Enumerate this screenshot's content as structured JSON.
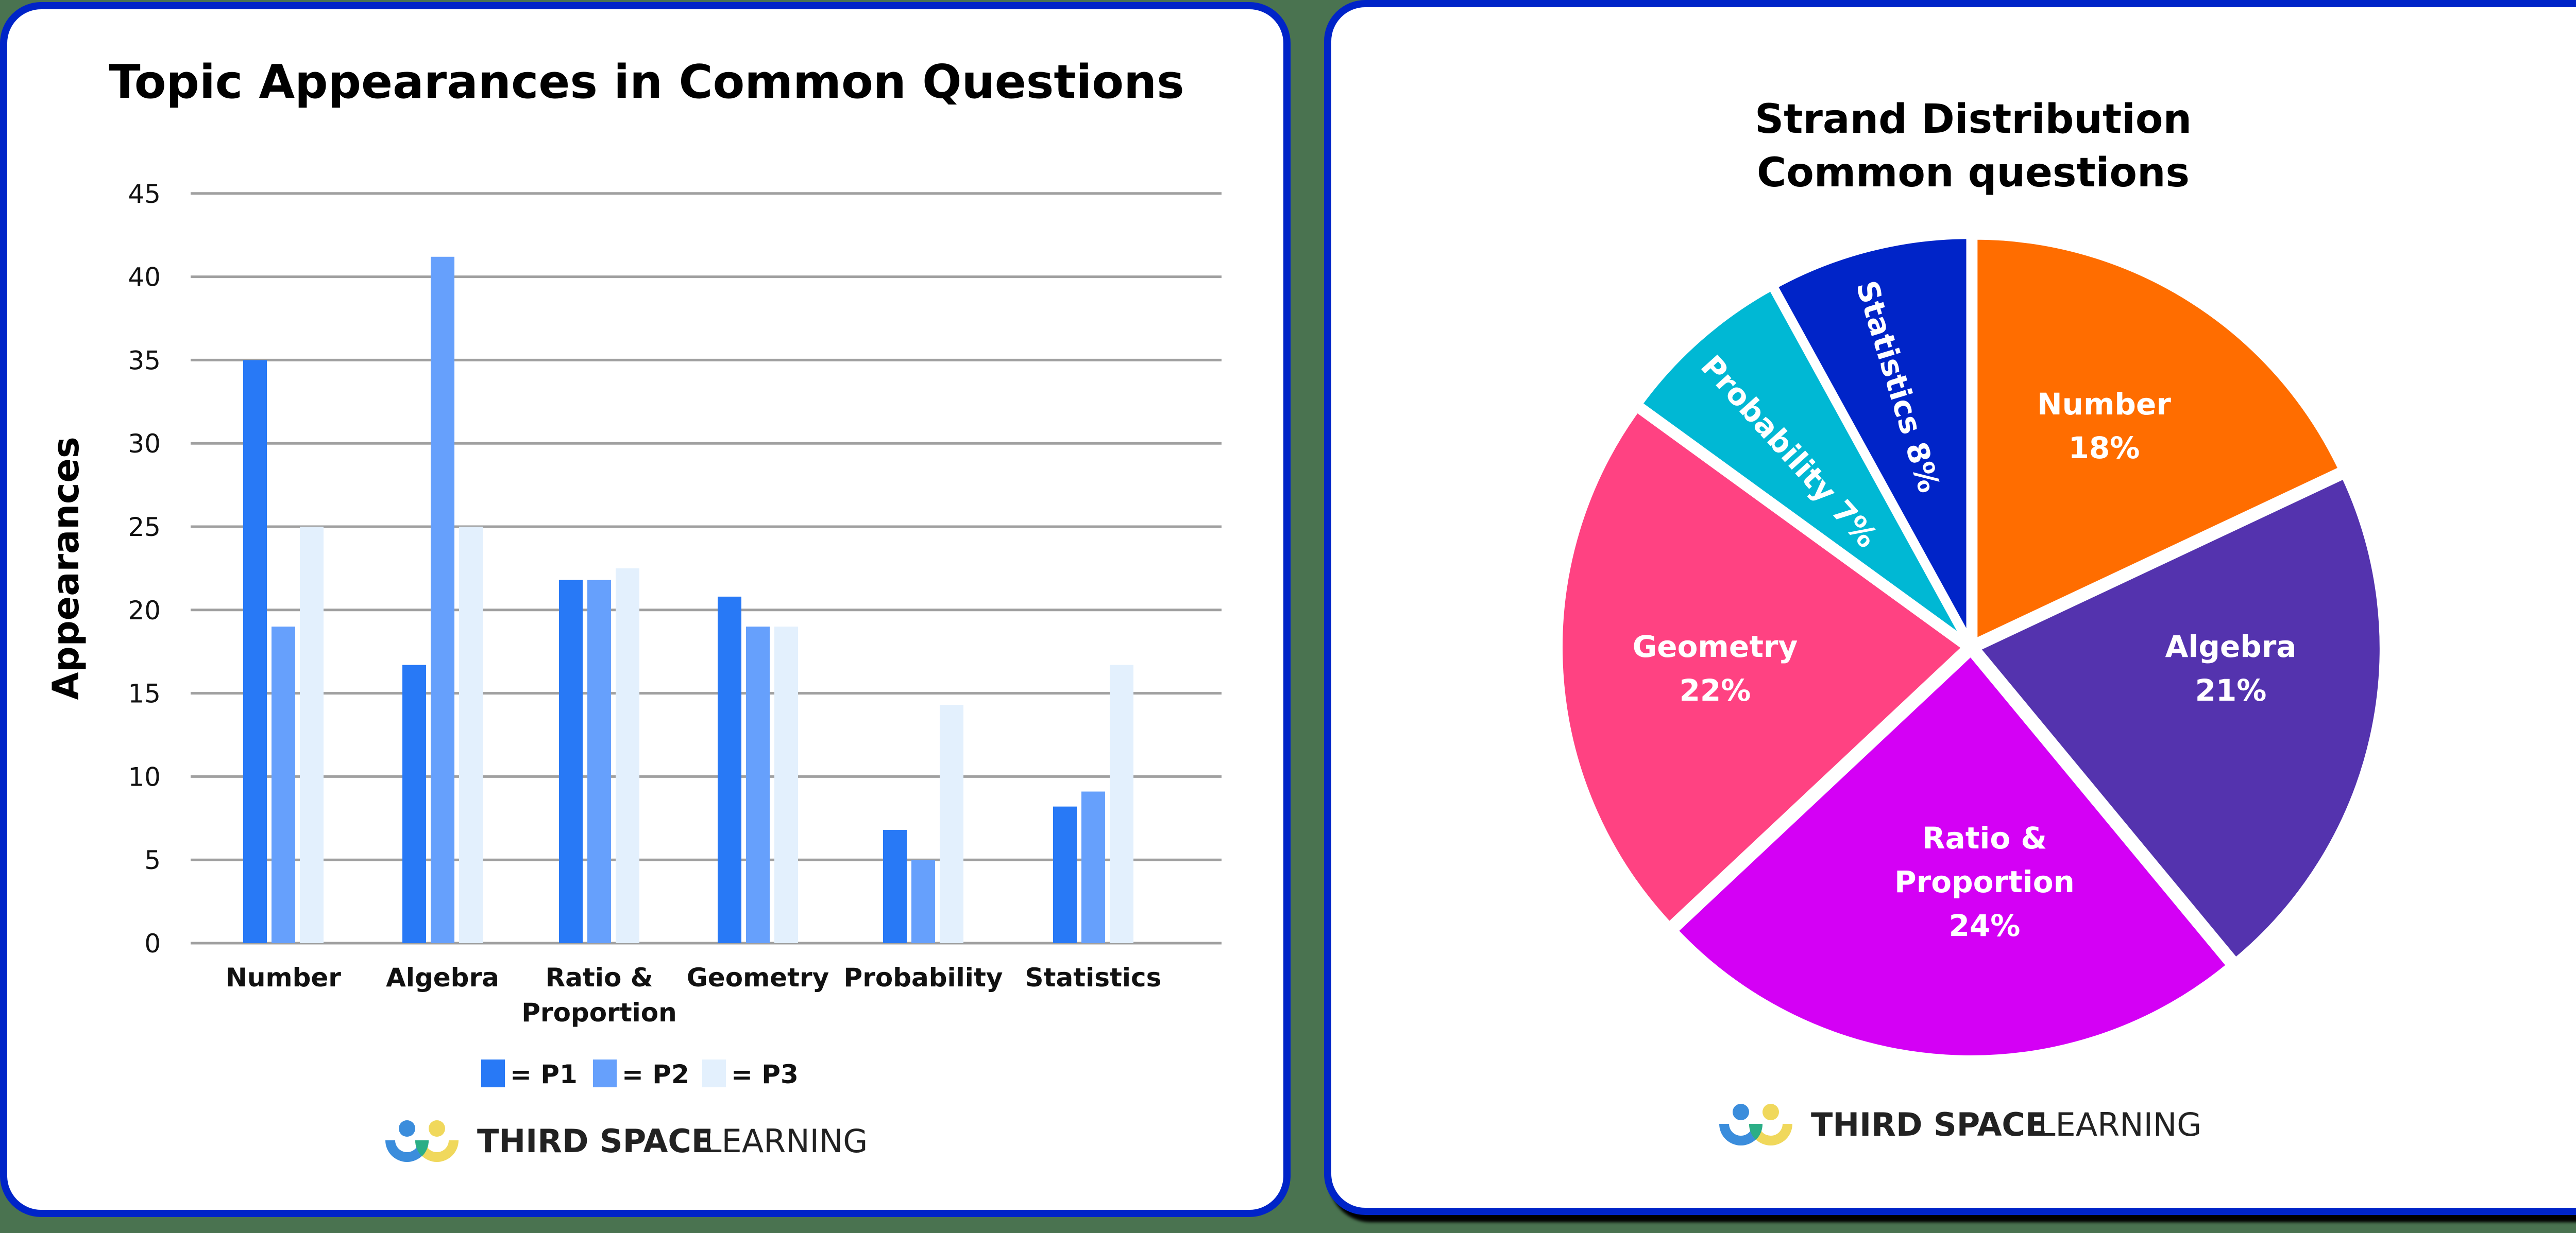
{
  "colors": {
    "card_border": "#0024c8",
    "p1": "#2879f6",
    "p2": "#66a0fc",
    "p3": "#e3f0fd",
    "grid": "#a0a0a0"
  },
  "left_card": {
    "title": "Topic Appearances in Common Questions",
    "y_axis_label": "Appearances",
    "y_ticks": [
      "0",
      "5",
      "10",
      "15",
      "20",
      "25",
      "30",
      "35",
      "40",
      "45"
    ],
    "categories": [
      {
        "line1": "Number",
        "line2": ""
      },
      {
        "line1": "Algebra",
        "line2": ""
      },
      {
        "line1": "Ratio &",
        "line2": "Proportion"
      },
      {
        "line1": "Geometry",
        "line2": ""
      },
      {
        "line1": "Probability",
        "line2": ""
      },
      {
        "line1": "Statistics",
        "line2": ""
      }
    ],
    "legend": [
      {
        "label": "= P1",
        "color": "#2879f6"
      },
      {
        "label": "= P2",
        "color": "#66a0fc"
      },
      {
        "label": "= P3",
        "color": "#e3f0fd"
      }
    ],
    "logo": {
      "bold": "THIRD SPACE",
      "light": "LEARNING"
    }
  },
  "right_card": {
    "title_line1": "Strand Distribution",
    "title_line2": "Common questions",
    "slices": [
      {
        "label": "Number",
        "pct": "18%",
        "color": "#ff6d00"
      },
      {
        "label": "Algebra",
        "pct": "21%",
        "color": "#5433ae"
      },
      {
        "label": "Ratio &",
        "label2": "Proportion",
        "pct": "24%",
        "color": "#d400f5"
      },
      {
        "label": "Geometry",
        "pct": "22%",
        "color": "#ff4282"
      },
      {
        "label": "Probability 7%",
        "pct": "7%",
        "color": "#00b8d4"
      },
      {
        "label": "Statistics 8%",
        "pct": "8%",
        "color": "#0024c8"
      }
    ],
    "logo": {
      "bold": "THIRD SPACE",
      "light": "LEARNING"
    }
  },
  "chart_data": [
    {
      "type": "bar",
      "title": "Topic Appearances in Common Questions",
      "xlabel": "",
      "ylabel": "Appearances",
      "ylim": [
        0,
        45
      ],
      "yticks": [
        0,
        5,
        10,
        15,
        20,
        25,
        30,
        35,
        40,
        45
      ],
      "grid": true,
      "legend_position": "bottom",
      "categories": [
        "Number",
        "Algebra",
        "Ratio & Proportion",
        "Geometry",
        "Probability",
        "Statistics"
      ],
      "series": [
        {
          "name": "P1",
          "color": "#2879f6",
          "values": [
            35,
            16.7,
            21.8,
            20.8,
            6.8,
            8.2
          ]
        },
        {
          "name": "P2",
          "color": "#66a0fc",
          "values": [
            19,
            41.2,
            21.8,
            19,
            5,
            9.1
          ]
        },
        {
          "name": "P3",
          "color": "#e3f0fd",
          "values": [
            25,
            25,
            22.5,
            19,
            14.3,
            16.7
          ]
        }
      ]
    },
    {
      "type": "pie",
      "title": "Strand Distribution Common questions",
      "categories": [
        "Number",
        "Algebra",
        "Ratio & Proportion",
        "Geometry",
        "Probability",
        "Statistics"
      ],
      "values": [
        18,
        21,
        24,
        22,
        7,
        8
      ],
      "unit": "%",
      "colors": [
        "#ff6d00",
        "#5433ae",
        "#d400f5",
        "#ff4282",
        "#00b8d4",
        "#0024c8"
      ],
      "start_angle": "12 o'clock, clockwise",
      "legend_position": "none (labels inside slices)"
    }
  ]
}
